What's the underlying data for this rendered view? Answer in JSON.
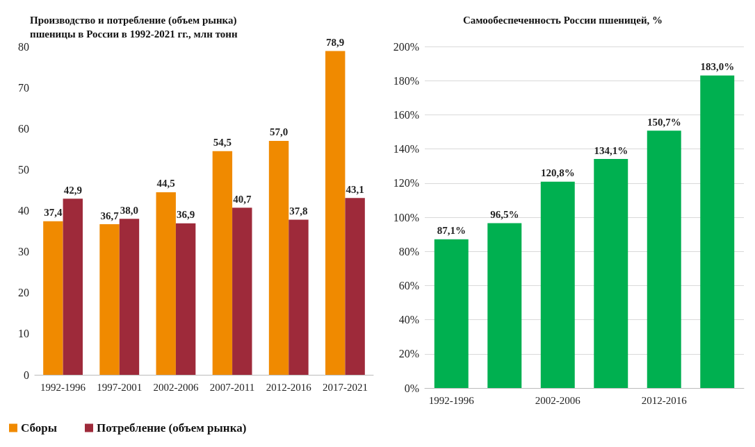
{
  "chart_data": [
    {
      "type": "bar",
      "title": "Производство и потребление (объем рынка)\nпшеницы в России в 1992-2021 гг., млн тонн",
      "categories": [
        "1992-1996",
        "1997-2001",
        "2002-2006",
        "2007-2011",
        "2012-2016",
        "2017-2021"
      ],
      "series": [
        {
          "name": "Сборы",
          "color": "#f08a00",
          "values": [
            37.4,
            36.7,
            44.5,
            54.5,
            57.0,
            78.9
          ],
          "value_labels": [
            "37,4",
            "36,7",
            "44,5",
            "54,5",
            "57,0",
            "78,9"
          ]
        },
        {
          "name": "Потребление (объем рынка)",
          "color": "#9e2a3a",
          "values": [
            42.9,
            38.0,
            36.9,
            40.7,
            37.8,
            43.1
          ],
          "value_labels": [
            "42,9",
            "38,0",
            "36,9",
            "40,7",
            "37,8",
            "43,1"
          ]
        }
      ],
      "ylim": [
        0,
        80
      ],
      "yticks": [
        0,
        10,
        20,
        30,
        40,
        50,
        60,
        70,
        80
      ],
      "legend": "bottom left"
    },
    {
      "type": "bar",
      "title": "Самообеспеченность России пшеницей, %",
      "categories": [
        "1992-1996",
        null,
        "2002-2006",
        null,
        "2012-2016",
        null
      ],
      "values": [
        87.1,
        96.5,
        120.8,
        134.1,
        150.7,
        183.0
      ],
      "color": "#00b050",
      "value_labels": [
        "87,1%",
        "96,5%",
        "120,8%",
        "134,1%",
        "150,7%",
        "183,0%"
      ],
      "ylim": [
        0,
        200
      ],
      "yticks": [
        {
          "value": 0,
          "label": "0%"
        },
        {
          "value": 20,
          "label": "20%"
        },
        {
          "value": 40,
          "label": "40%"
        },
        {
          "value": 60,
          "label": "60%"
        },
        {
          "value": 80,
          "label": "80%"
        },
        {
          "value": 100,
          "label": "100%"
        },
        {
          "value": 120,
          "label": "120%"
        },
        {
          "value": 140,
          "label": "140%"
        },
        {
          "value": 160,
          "label": "160%"
        },
        {
          "value": 180,
          "label": "180%"
        },
        {
          "value": 200,
          "label": "200%"
        }
      ],
      "grid": "y"
    }
  ]
}
